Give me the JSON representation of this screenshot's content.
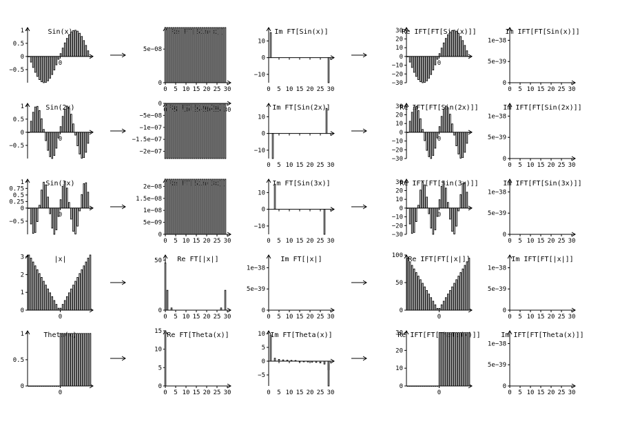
{
  "chart_data": {
    "type": "bar",
    "layout": "5x5 grid of bar plots showing Fourier transforms and inverse transforms of sampled functions",
    "arrow_char": "→",
    "n_samples": 30,
    "x_ticks_index": [
      "0",
      "5",
      "10",
      "15",
      "20",
      "25",
      "30"
    ],
    "x_tick_center": "0",
    "rows": [
      {
        "name": "Sin(x)",
        "panels": [
          {
            "title": "Sin(x)",
            "kind": "signal",
            "func": "sin1",
            "ylim": [
              -1,
              1.1
            ],
            "yticks": [
              "1",
              "0.5",
              "0",
              "−0.5"
            ],
            "ytick_vals": [
              1,
              0.5,
              0,
              -0.5
            ],
            "x_axis_at": 0
          },
          {
            "title": "Re FT[Sin(x)]",
            "kind": "const",
            "value": 8.2e-08,
            "ylim": [
              0,
              8.2e-08
            ],
            "yticks": [
              "5e−08",
              "0"
            ],
            "ytick_vals": [
              5e-08,
              0
            ],
            "title_overlap": true
          },
          {
            "title": "Im FT[Sin(x)]",
            "kind": "spikes",
            "spikes": [
              [
                1,
                15
              ],
              [
                29,
                -15
              ]
            ],
            "ylim": [
              -15,
              18
            ],
            "yticks": [
              "10",
              "0",
              "−10"
            ],
            "ytick_vals": [
              10,
              0,
              -10
            ],
            "x_axis_at": 0
          },
          {
            "title": "Re IFT[FT[Sin(x)]]",
            "kind": "signal",
            "func": "sin1",
            "scale": 30,
            "ylim": [
              -30,
              33
            ],
            "yticks": [
              "30",
              "20",
              "10",
              "0",
              "−10",
              "−20",
              "−30"
            ],
            "ytick_vals": [
              30,
              20,
              10,
              0,
              -10,
              -20,
              -30
            ],
            "x_axis_at": 0
          },
          {
            "title": "Im IFT[FT[Sin(x)]]",
            "kind": "zero",
            "ylim": [
              0,
              1.3e-38
            ],
            "yticks": [
              "1e−38",
              "5e−39",
              "0"
            ],
            "ytick_vals": [
              1e-38,
              5e-39,
              0
            ]
          }
        ]
      },
      {
        "name": "Sin(2x)",
        "panels": [
          {
            "title": "Sin(2x)",
            "kind": "signal",
            "func": "sin2",
            "ylim": [
              -1,
              1.1
            ],
            "yticks": [
              "1",
              "0.5",
              "0",
              "−0.5"
            ],
            "ytick_vals": [
              1,
              0.5,
              0,
              -0.5
            ],
            "x_axis_at": 0
          },
          {
            "title": "Re FT[Sin(2x)]",
            "kind": "const",
            "value": -2.3e-07,
            "ylim": [
              -2.3e-07,
              0
            ],
            "yticks": [
              "0",
              "−5e−08",
              "−1e−07",
              "−1.5e−07",
              "−2e−07"
            ],
            "ytick_vals": [
              0,
              -5e-08,
              -1e-07,
              -1.5e-07,
              -2e-07
            ],
            "x_axis_at": 0,
            "x_labels_on_axis": true
          },
          {
            "title": "Im FT[Sin(2x)]",
            "kind": "spikes",
            "spikes": [
              [
                2,
                -15
              ],
              [
                28,
                15
              ]
            ],
            "ylim": [
              -15,
              18
            ],
            "yticks": [
              "10",
              "0",
              "−10"
            ],
            "ytick_vals": [
              10,
              0,
              -10
            ],
            "x_axis_at": 0
          },
          {
            "title": "Re IFT[FT[Sin(2x)]]",
            "kind": "signal",
            "func": "sin2",
            "scale": 30,
            "ylim": [
              -30,
              33
            ],
            "yticks": [
              "30",
              "20",
              "10",
              "0",
              "−10",
              "−20",
              "−30"
            ],
            "ytick_vals": [
              30,
              20,
              10,
              0,
              -10,
              -20,
              -30
            ],
            "x_axis_at": 0
          },
          {
            "title": "Im IFT[FT[Sin(2x)]]",
            "kind": "zero",
            "ylim": [
              0,
              1.3e-38
            ],
            "yticks": [
              "1e−38",
              "5e−39",
              "0"
            ],
            "ytick_vals": [
              1e-38,
              5e-39,
              0
            ]
          }
        ]
      },
      {
        "name": "Sin(3x)",
        "panels": [
          {
            "title": "Sin(3x)",
            "kind": "signal",
            "func": "sin3",
            "ylim": [
              -1,
              1.1
            ],
            "yticks": [
              "1",
              "0.75",
              "0.5",
              "0.25",
              "0",
              "−0.5"
            ],
            "ytick_vals": [
              1,
              0.75,
              0.5,
              0.25,
              0,
              -0.5
            ],
            "x_axis_at": 0
          },
          {
            "title": "Re FT[Sin(3x)]",
            "kind": "const",
            "value": 2.3e-08,
            "ylim": [
              0,
              2.3e-08
            ],
            "yticks": [
              "2e−08",
              "1.5e−08",
              "1e−08",
              "5e−09",
              "0"
            ],
            "ytick_vals": [
              2e-08,
              1.5e-08,
              1e-08,
              5e-09,
              0
            ],
            "title_overlap": true
          },
          {
            "title": "Im FT[Sin(3x)]",
            "kind": "spikes",
            "spikes": [
              [
                3,
                15
              ],
              [
                27,
                -15
              ]
            ],
            "ylim": [
              -15,
              18
            ],
            "yticks": [
              "10",
              "0",
              "−10"
            ],
            "ytick_vals": [
              10,
              0,
              -10
            ],
            "x_axis_at": 0
          },
          {
            "title": "Re IFT[FT[Sin(3x)]]",
            "kind": "signal",
            "func": "sin3",
            "scale": 30,
            "ylim": [
              -30,
              33
            ],
            "yticks": [
              "30",
              "20",
              "10",
              "0",
              "−10",
              "−20",
              "−30"
            ],
            "ytick_vals": [
              30,
              20,
              10,
              0,
              -10,
              -20,
              -30
            ],
            "x_axis_at": 0
          },
          {
            "title": "Im IFT[FT[Sin(3x)]]",
            "kind": "zero",
            "ylim": [
              0,
              1.3e-38
            ],
            "yticks": [
              "1e−38",
              "5e−39",
              "0"
            ],
            "ytick_vals": [
              1e-38,
              5e-39,
              0
            ]
          }
        ]
      },
      {
        "name": "|x|",
        "panels": [
          {
            "title": "|x|",
            "kind": "signal",
            "func": "abs",
            "ylim": [
              0,
              3.1
            ],
            "yticks": [
              "3",
              "2",
              "1",
              "0"
            ],
            "ytick_vals": [
              3,
              2,
              1,
              0
            ]
          },
          {
            "title": "Re FT[|x|]",
            "kind": "spikes",
            "spikes": [
              [
                0,
                47
              ],
              [
                1,
                19.8
              ],
              [
                3,
                2.2
              ],
              [
                27,
                2.2
              ],
              [
                29,
                19.8
              ]
            ],
            "ylim": [
              0,
              55
            ],
            "yticks": [
              "50",
              "0"
            ],
            "ytick_vals": [
              50,
              0
            ]
          },
          {
            "title": "Im FT[|x|]",
            "kind": "zero",
            "ylim": [
              0,
              1.3e-38
            ],
            "yticks": [
              "1e−38",
              "5e−39",
              "0"
            ],
            "ytick_vals": [
              1e-38,
              5e-39,
              0
            ]
          },
          {
            "title": "Re IFT[FT[|x|]]",
            "kind": "signal",
            "func": "abs",
            "scale": 30,
            "ylim": [
              0,
              100
            ],
            "yticks": [
              "100",
              "50",
              "0"
            ],
            "ytick_vals": [
              100,
              50,
              0
            ]
          },
          {
            "title": "Im IFT[FT[|x|]]",
            "kind": "zero",
            "ylim": [
              0,
              1.3e-38
            ],
            "yticks": [
              "1e−38",
              "5e−39",
              "0"
            ],
            "ytick_vals": [
              1e-38,
              5e-39,
              0
            ]
          }
        ]
      },
      {
        "name": "Theta(x)",
        "panels": [
          {
            "title": "Theta(x)",
            "kind": "signal",
            "func": "theta",
            "ylim": [
              0,
              1.05
            ],
            "yticks": [
              "1",
              "0.5",
              "0"
            ],
            "ytick_vals": [
              1,
              0.5,
              0
            ]
          },
          {
            "title": "Re FT[Theta(x)]",
            "kind": "spikes",
            "spikes": [
              [
                0,
                15
              ]
            ],
            "ylim": [
              0,
              15
            ],
            "yticks": [
              "15",
              "10",
              "5",
              "0"
            ],
            "ytick_vals": [
              15,
              10,
              5,
              0
            ]
          },
          {
            "title": "Im FT[Theta(x)]",
            "kind": "im_theta",
            "ylim": [
              -9,
              11
            ],
            "yticks": [
              "10",
              "5",
              "0",
              "−5"
            ],
            "ytick_vals": [
              10,
              5,
              0,
              -5
            ],
            "x_axis_at": 0
          },
          {
            "title": "Re IFT[FT[Theta(x)]]",
            "kind": "signal",
            "func": "theta",
            "scale": 30,
            "ylim": [
              0,
              31
            ],
            "yticks": [
              "30",
              "20",
              "10",
              "0"
            ],
            "ytick_vals": [
              30,
              20,
              10,
              0
            ]
          },
          {
            "title": "Im IFT[FT[Theta(x)]]",
            "kind": "zero",
            "ylim": [
              0,
              1.3e-38
            ],
            "yticks": [
              "1e−38",
              "5e−39",
              "0"
            ],
            "ytick_vals": [
              1e-38,
              5e-39,
              0
            ]
          }
        ]
      }
    ]
  }
}
